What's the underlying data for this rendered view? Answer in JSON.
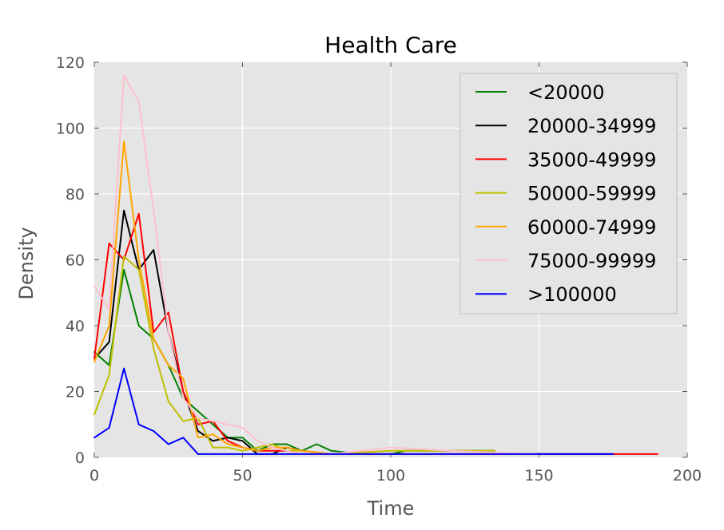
{
  "chart_data": {
    "type": "line",
    "title": "Health Care",
    "xlabel": "Time",
    "ylabel": "Density",
    "xlim": [
      0,
      200
    ],
    "ylim": [
      0,
      120
    ],
    "xticks": [
      0,
      50,
      100,
      150,
      200
    ],
    "yticks": [
      0,
      20,
      40,
      60,
      80,
      100,
      120
    ],
    "grid": true,
    "legend_position": "top-right",
    "series": [
      {
        "name": "<20000",
        "color": "#008000",
        "points": [
          [
            0,
            32
          ],
          [
            5,
            28
          ],
          [
            10,
            57
          ],
          [
            15,
            40
          ],
          [
            20,
            36
          ],
          [
            25,
            28
          ],
          [
            30,
            18
          ],
          [
            35,
            14
          ],
          [
            40,
            10
          ],
          [
            45,
            6
          ],
          [
            50,
            6
          ],
          [
            55,
            2
          ],
          [
            60,
            4
          ],
          [
            65,
            4
          ],
          [
            70,
            2
          ],
          [
            75,
            4
          ],
          [
            80,
            2
          ],
          [
            90,
            1
          ],
          [
            100,
            1
          ],
          [
            105,
            2
          ],
          [
            135,
            2
          ]
        ]
      },
      {
        "name": "20000-34999",
        "color": "#000000",
        "points": [
          [
            0,
            30
          ],
          [
            5,
            35
          ],
          [
            10,
            75
          ],
          [
            15,
            57
          ],
          [
            20,
            63
          ],
          [
            25,
            38
          ],
          [
            30,
            20
          ],
          [
            35,
            8
          ],
          [
            40,
            5
          ],
          [
            45,
            6
          ],
          [
            50,
            5
          ],
          [
            55,
            1
          ],
          [
            60,
            1
          ],
          [
            65,
            3
          ],
          [
            70,
            2
          ],
          [
            80,
            1
          ],
          [
            100,
            1
          ],
          [
            110,
            1
          ],
          [
            175,
            1
          ]
        ]
      },
      {
        "name": "35000-49999",
        "color": "#ff0000",
        "points": [
          [
            0,
            30
          ],
          [
            5,
            65
          ],
          [
            10,
            60
          ],
          [
            15,
            74
          ],
          [
            20,
            38
          ],
          [
            25,
            44
          ],
          [
            30,
            20
          ],
          [
            35,
            10
          ],
          [
            40,
            11
          ],
          [
            45,
            5
          ],
          [
            50,
            3
          ],
          [
            55,
            2
          ],
          [
            60,
            2
          ],
          [
            65,
            2
          ],
          [
            70,
            1
          ],
          [
            80,
            1
          ],
          [
            100,
            1
          ],
          [
            150,
            1
          ],
          [
            175,
            1
          ],
          [
            180,
            1
          ],
          [
            190,
            1
          ]
        ]
      },
      {
        "name": "50000-59999",
        "color": "#bfbf00",
        "points": [
          [
            0,
            13
          ],
          [
            5,
            25
          ],
          [
            10,
            61
          ],
          [
            15,
            57
          ],
          [
            20,
            33
          ],
          [
            25,
            17
          ],
          [
            30,
            11
          ],
          [
            35,
            12
          ],
          [
            40,
            3
          ],
          [
            45,
            3
          ],
          [
            50,
            2
          ],
          [
            55,
            3
          ],
          [
            60,
            4
          ],
          [
            65,
            2
          ],
          [
            70,
            2
          ],
          [
            80,
            1
          ],
          [
            100,
            2
          ],
          [
            110,
            2
          ],
          [
            135,
            2
          ]
        ]
      },
      {
        "name": "60000-74999",
        "color": "#ffa500",
        "points": [
          [
            0,
            29
          ],
          [
            5,
            40
          ],
          [
            10,
            96
          ],
          [
            15,
            60
          ],
          [
            20,
            36
          ],
          [
            25,
            28
          ],
          [
            30,
            24
          ],
          [
            35,
            6
          ],
          [
            40,
            7
          ],
          [
            45,
            4
          ],
          [
            50,
            3
          ],
          [
            55,
            2
          ],
          [
            60,
            3
          ],
          [
            65,
            3
          ],
          [
            70,
            2
          ],
          [
            80,
            1
          ],
          [
            100,
            1
          ],
          [
            150,
            1
          ]
        ]
      },
      {
        "name": "75000-99999",
        "color": "#ffc0cb",
        "points": [
          [
            0,
            52
          ],
          [
            5,
            45
          ],
          [
            10,
            116
          ],
          [
            15,
            108
          ],
          [
            20,
            75
          ],
          [
            25,
            38
          ],
          [
            30,
            18
          ],
          [
            35,
            12
          ],
          [
            40,
            11
          ],
          [
            45,
            10
          ],
          [
            50,
            9
          ],
          [
            55,
            5
          ],
          [
            60,
            3
          ],
          [
            65,
            2
          ],
          [
            70,
            1
          ],
          [
            80,
            1
          ],
          [
            100,
            3
          ],
          [
            120,
            2
          ],
          [
            150,
            1
          ]
        ]
      },
      {
        "name": ">100000",
        "color": "#0000ff",
        "points": [
          [
            0,
            6
          ],
          [
            5,
            9
          ],
          [
            10,
            27
          ],
          [
            15,
            10
          ],
          [
            20,
            8
          ],
          [
            25,
            4
          ],
          [
            30,
            6
          ],
          [
            35,
            1
          ],
          [
            40,
            1
          ],
          [
            50,
            1
          ],
          [
            60,
            1
          ],
          [
            80,
            1
          ],
          [
            100,
            1
          ],
          [
            120,
            1
          ],
          [
            150,
            1
          ],
          [
            175,
            1
          ]
        ]
      }
    ]
  }
}
